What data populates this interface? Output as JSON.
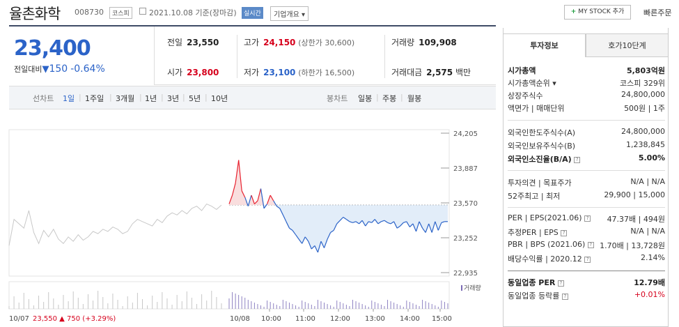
{
  "header": {
    "stock_name": "율촌화학",
    "code": "008730",
    "market": "코스피",
    "date": "2021.10.08",
    "date_suffix": "기준(장마감)",
    "realtime": "실시간",
    "corp_overview": "기업개요",
    "my_stock": "MY STOCK 추가",
    "quick_order": "빠른주문"
  },
  "price": {
    "current": "23,400",
    "change_label": "전일대비",
    "change_amount": "150",
    "change_pct": "-0.64%"
  },
  "quote": {
    "prev_label": "전일",
    "prev": "23,550",
    "high_label": "고가",
    "high": "24,150",
    "upper_limit": "(상한가 30,600)",
    "volume_label": "거래량",
    "volume": "109,908",
    "open_label": "시가",
    "open": "23,800",
    "low_label": "저가",
    "low": "23,100",
    "lower_limit": "(하한가 16,500)",
    "amount_label": "거래대금",
    "amount": "2,575",
    "amount_unit": "백만"
  },
  "period_bar": {
    "line_label": "선차트",
    "periods": [
      "1일",
      "1주일",
      "3개월",
      "1년",
      "3년",
      "5년",
      "10년"
    ],
    "active": "1일",
    "candle_label": "봉차트",
    "candles": [
      "일봉",
      "주봉",
      "월봉"
    ]
  },
  "chart_data": {
    "type": "line",
    "yticks": [
      "24,205",
      "23,887",
      "23,570",
      "23,252",
      "22,935"
    ],
    "xticks": [
      "10/07",
      "10/08",
      "10:00",
      "11:00",
      "12:00",
      "13:00",
      "14:00",
      "15:00"
    ],
    "volume_legend": "거래량",
    "prev_day_summary": {
      "close": "23,550",
      "change": "750",
      "pct": "(+3.29%)"
    },
    "colors": {
      "up": "#e8212f",
      "down": "#2b63c8",
      "prev": "#c8c8c8"
    },
    "prev_day": [
      23180,
      23420,
      23380,
      23340,
      23500,
      23300,
      23200,
      23320,
      23260,
      23330,
      23240,
      23200,
      23260,
      23220,
      23280,
      23230,
      23260,
      23310,
      23290,
      23330,
      23310,
      23350,
      23330,
      23290,
      23310,
      23380,
      23420,
      23400,
      23380,
      23360,
      23420,
      23390,
      23450,
      23480,
      23460,
      23500,
      23470,
      23520,
      23540,
      23500,
      23560,
      23540,
      23510,
      23550
    ],
    "today": [
      23560,
      23640,
      23750,
      23960,
      23680,
      23620,
      23540,
      23640,
      23560,
      23590,
      23700,
      23520,
      23560,
      23640,
      23590,
      23540,
      23520,
      23460,
      23400,
      23340,
      23320,
      23280,
      23240,
      23200,
      23260,
      23220,
      23150,
      23180,
      23120,
      23220,
      23160,
      23240,
      23300,
      23320,
      23380,
      23410,
      23440,
      23420,
      23400,
      23390,
      23400,
      23380,
      23410,
      23360,
      23400,
      23390,
      23420,
      23380,
      23400,
      23410,
      23390,
      23380,
      23400,
      23340,
      23360,
      23390,
      23400,
      23350,
      23380,
      23310,
      23400,
      23340,
      23300,
      23380,
      23300,
      23400,
      23320,
      23390,
      23400,
      23400
    ]
  },
  "right_panel": {
    "tabs": [
      "투자정보",
      "호가10단계"
    ],
    "market_cap_label": "시가총액",
    "market_cap": "5,803억원",
    "market_cap_rank_label": "시가총액순위",
    "market_cap_rank": "코스피 329위",
    "shares_label": "상장주식수",
    "shares": "24,800,000",
    "par_label": "액면가 | 매매단위",
    "par": "500원 | 1주",
    "foreign_limit_label": "외국인한도주식수(A)",
    "foreign_limit": "24,800,000",
    "foreign_hold_label": "외국인보유주식수(B)",
    "foreign_hold": "1,238,845",
    "foreign_ratio_label": "외국인소진율(B/A)",
    "foreign_ratio": "5.00%",
    "opinion_label": "투자의견 | 목표주가",
    "opinion": "N/A | N/A",
    "range_label": "52주최고 | 최저",
    "range": "29,900 | 15,000",
    "per_label": "PER | EPS(2021.06)",
    "per": "47.37배 | 494원",
    "est_per_label": "추정PER | EPS",
    "est_per": "N/A | N/A",
    "pbr_label": "PBR | BPS (2021.06)",
    "pbr": "1.70배 | 13,728원",
    "div_label": "배당수익률 | 2020.12",
    "div": "2.14%",
    "sector_per_label": "동일업종 PER",
    "sector_per": "12.79배",
    "sector_change_label": "동일업종 등락률",
    "sector_change": "+0.01%"
  }
}
